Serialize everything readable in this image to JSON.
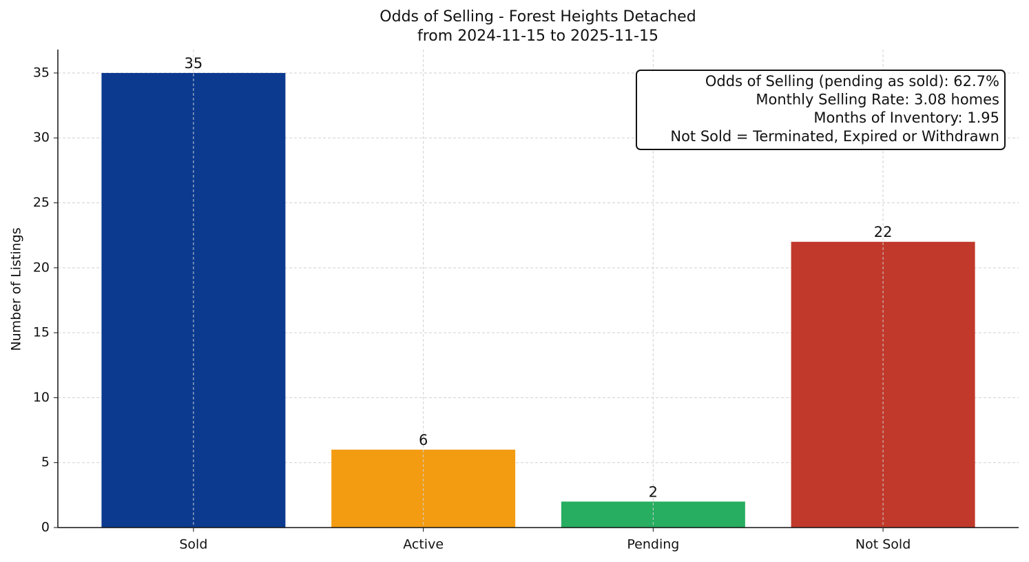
{
  "chart_data": {
    "type": "bar",
    "title": "Odds of Selling - Forest Heights Detached",
    "subtitle": "from 2024-11-15 to 2025-11-15",
    "y_label": "Number of Listings",
    "categories": [
      "Sold",
      "Active",
      "Pending",
      "Not Sold"
    ],
    "values": [
      35,
      6,
      2,
      22
    ],
    "colors": [
      "#0b3a8f",
      "#f39c12",
      "#27ae60",
      "#c0392b"
    ],
    "ylim": [
      0,
      36.8
    ],
    "yticks": [
      0,
      5,
      10,
      15,
      20,
      25,
      30,
      35
    ],
    "grid": true,
    "annotations": [
      "Odds of Selling (pending as sold): 62.7%",
      "Monthly Selling Rate: 3.08 homes",
      "Months of Inventory: 1.95",
      "Not Sold = Terminated, Expired or Withdrawn"
    ]
  }
}
